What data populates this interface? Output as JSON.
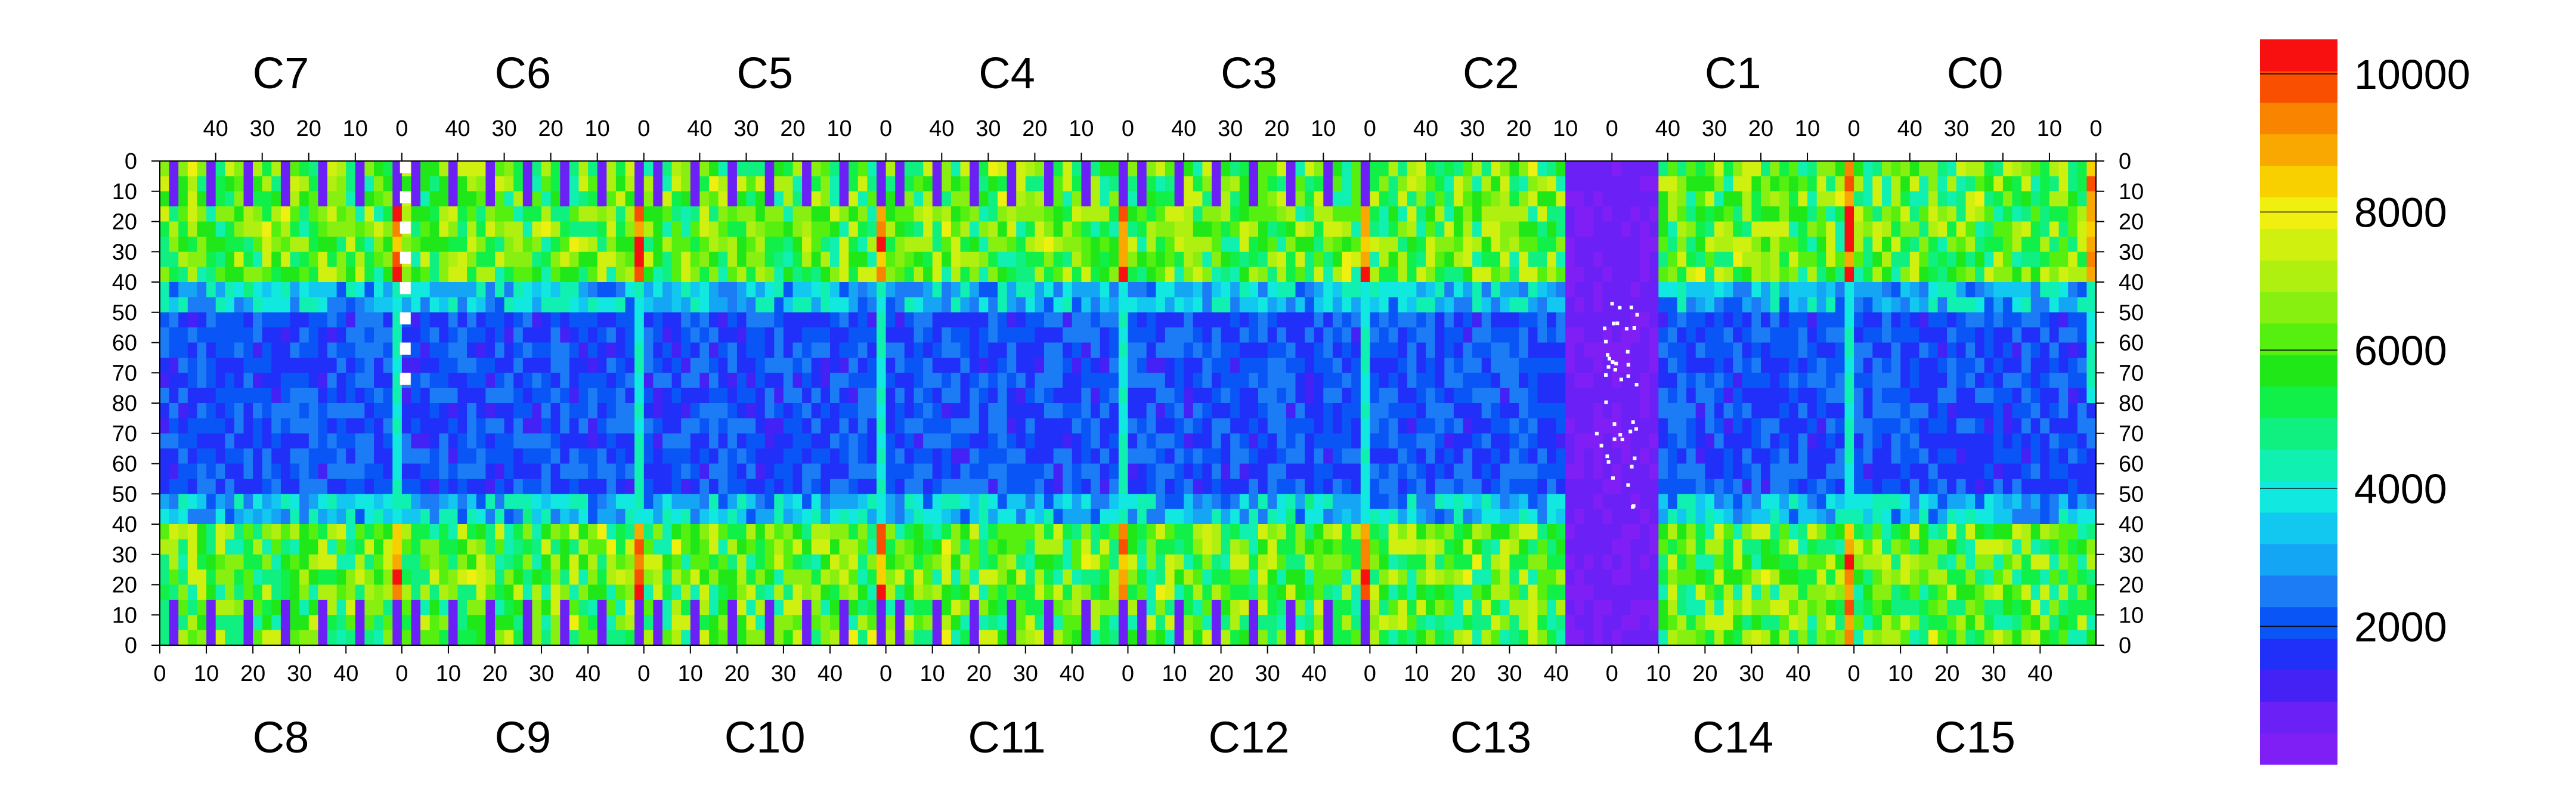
{
  "chart_data": {
    "type": "heatmap",
    "title": "",
    "xlabel": "",
    "ylabel": "",
    "chips_top": [
      "C7",
      "C6",
      "C5",
      "C4",
      "C3",
      "C2",
      "C1",
      "C0"
    ],
    "chips_bottom": [
      "C8",
      "C9",
      "C10",
      "C11",
      "C12",
      "C13",
      "C14",
      "C15"
    ],
    "top_x_ticks": [
      "40",
      "30",
      "20",
      "10",
      "0"
    ],
    "bottom_x_ticks": [
      "0",
      "10",
      "20",
      "30",
      "40"
    ],
    "y_ticks": [
      "0",
      "10",
      "20",
      "30",
      "40",
      "50",
      "60",
      "70",
      "80",
      "70",
      "60",
      "50",
      "40",
      "30",
      "20",
      "10",
      "0"
    ],
    "y_range_top": [
      0,
      80
    ],
    "y_range_bottom": [
      80,
      0
    ],
    "x_range_per_chip": [
      0,
      52
    ],
    "colorbar": {
      "range": [
        0,
        10500
      ],
      "ticks": [
        2000,
        4000,
        6000,
        8000,
        10000
      ],
      "tick_labels": [
        "2000",
        "4000",
        "6000",
        "8000",
        "10000"
      ],
      "colors": [
        "#7f1ff5",
        "#6b21f5",
        "#4422f5",
        "#2030f8",
        "#0a55f5",
        "#1b7cf5",
        "#15a5f5",
        "#12c7f0",
        "#10e8e0",
        "#10f0b0",
        "#10f080",
        "#10f048",
        "#20e818",
        "#55f010",
        "#88f010",
        "#b0f010",
        "#d0f010",
        "#f0f010",
        "#f8d000",
        "#f8a800",
        "#f88400",
        "#f85000",
        "#f81010"
      ]
    },
    "chips": [
      {
        "name": "C7",
        "hot_col": "right",
        "pads": true,
        "white_strip": "right",
        "pattern": "uniform-top"
      },
      {
        "name": "C6",
        "hot_col": "right",
        "pads": true,
        "pattern": "uniform-top"
      },
      {
        "name": "C5",
        "hot_col": "right",
        "pads": true,
        "pattern": "uniform-top"
      },
      {
        "name": "C4",
        "hot_col": "right",
        "pads": true,
        "pattern": "uniform-top"
      },
      {
        "name": "C3",
        "hot_col": "right",
        "pads": true,
        "pattern": "uniform-top"
      },
      {
        "name": "C2",
        "hot_col": "none",
        "pads": false,
        "pattern": "dead-right"
      },
      {
        "name": "C1",
        "hot_col": "right",
        "pads": false,
        "pattern": "dead-left"
      },
      {
        "name": "C0",
        "hot_col": "right",
        "pads": false,
        "pattern": "uniform-top"
      },
      {
        "name": "C8",
        "hot_col": "right",
        "pads": true,
        "pattern": "uniform-bottom"
      },
      {
        "name": "C9",
        "hot_col": "right",
        "pads": true,
        "pattern": "uniform-bottom"
      },
      {
        "name": "C10",
        "hot_col": "right",
        "pads": true,
        "pattern": "uniform-bottom"
      },
      {
        "name": "C11",
        "hot_col": "right",
        "pads": true,
        "pattern": "uniform-bottom"
      },
      {
        "name": "C12",
        "hot_col": "right",
        "pads": true,
        "pattern": "uniform-bottom"
      },
      {
        "name": "C13",
        "hot_col": "none",
        "pads": false,
        "pattern": "dead-right"
      },
      {
        "name": "C14",
        "hot_col": "right",
        "pads": false,
        "pattern": "dead-left"
      },
      {
        "name": "C15",
        "hot_col": "none",
        "pads": false,
        "pattern": "uniform-bottom"
      }
    ]
  }
}
